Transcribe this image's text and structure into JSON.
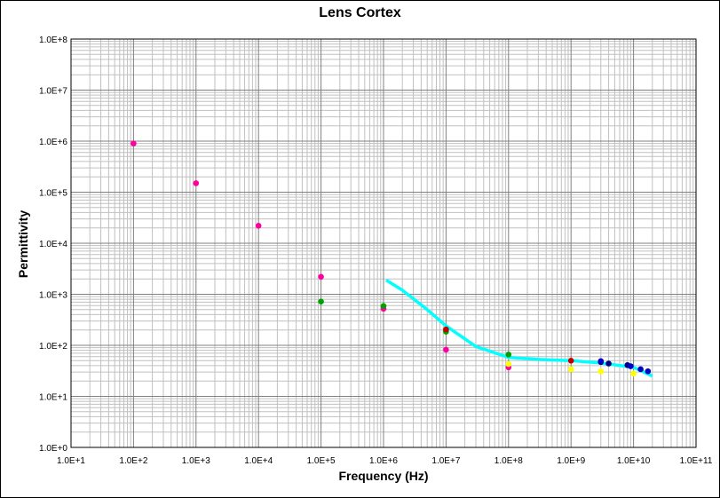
{
  "chart_data": {
    "type": "scatter",
    "title": "Lens Cortex",
    "xlabel": "Frequency (Hz)",
    "ylabel": "Permittivity",
    "xscale": "log",
    "yscale": "log",
    "xlim": [
      10,
      100000000000
    ],
    "ylim": [
      1,
      100000000
    ],
    "grid": true,
    "legend": "none",
    "x_tick_labels": [
      "1.0E+1",
      "1.0E+2",
      "1.0E+3",
      "1.0E+4",
      "1.0E+5",
      "1.0E+6",
      "1.0E+7",
      "1.0E+8",
      "1.0E+9",
      "1.0E+10",
      "1.0E+11"
    ],
    "y_tick_labels": [
      "1.0E+0",
      "1.0E+1",
      "1.0E+2",
      "1.0E+3",
      "1.0E+4",
      "1.0E+5",
      "1.0E+6",
      "1.0E+7",
      "1.0E+8"
    ],
    "colors": {
      "magenta": "#ff00a0",
      "green": "#00a000",
      "red": "#c00000",
      "yellow": "#ffff00",
      "blue": "#0000c8",
      "navy": "#000080",
      "cyan": "#00ffff"
    },
    "series": [
      {
        "color": "#ff00a0",
        "points": [
          [
            100,
            900000
          ],
          [
            1000,
            150000
          ],
          [
            10000,
            22000
          ],
          [
            100000,
            2200
          ],
          [
            1000000,
            520
          ],
          [
            10000000,
            82
          ],
          [
            100000000,
            37
          ]
        ]
      },
      {
        "color": "#00a000",
        "points": [
          [
            100000,
            720
          ],
          [
            1000000,
            590
          ],
          [
            10000000,
            185
          ],
          [
            100000000,
            66
          ]
        ]
      },
      {
        "color": "#c00000",
        "points": [
          [
            10000000,
            205
          ],
          [
            1000000000,
            50
          ]
        ]
      },
      {
        "color": "#ffff00",
        "points": [
          [
            100000000,
            43
          ],
          [
            1000000000,
            34
          ],
          [
            3000000000,
            31
          ],
          [
            10000000000,
            28
          ]
        ]
      },
      {
        "color": "#000080",
        "points": [
          [
            3000000000,
            47
          ],
          [
            4000000000,
            44
          ],
          [
            8000000000,
            41
          ]
        ]
      },
      {
        "color": "#0000c8",
        "points": [
          [
            3000000000,
            49
          ],
          [
            9000000000,
            39
          ],
          [
            13000000000,
            34
          ],
          [
            17000000000,
            31
          ]
        ]
      }
    ],
    "line": {
      "color": "#00ffff",
      "points": [
        [
          1100000,
          1900
        ],
        [
          2000000,
          1200
        ],
        [
          5000000,
          500
        ],
        [
          10000000,
          240
        ],
        [
          30000000,
          95
        ],
        [
          100000000,
          58
        ],
        [
          300000000,
          53
        ],
        [
          1000000000,
          50
        ],
        [
          3000000000,
          45
        ],
        [
          10000000000,
          37
        ],
        [
          20000000000,
          25
        ]
      ]
    }
  }
}
